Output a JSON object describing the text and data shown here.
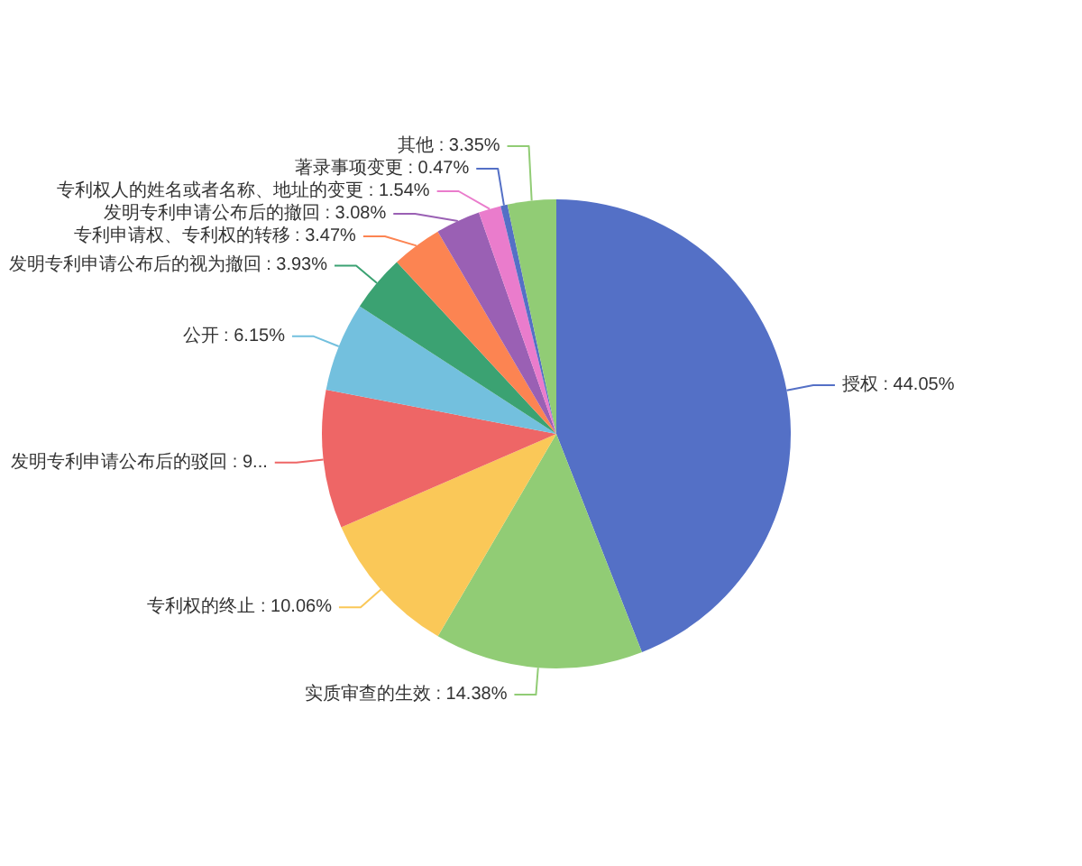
{
  "chart_data": {
    "type": "pie",
    "categories": [
      "授权",
      "实质审查的生效",
      "专利权的终止",
      "发明专利申请公布后的驳回",
      "公开",
      "发明专利申请公布后的视为撤回",
      "专利申请权、专利权的转移",
      "发明专利申请公布后的撤回",
      "专利权人的姓名或者名称、地址的变更",
      "著录事项变更",
      "其他"
    ],
    "values": [
      44.05,
      14.38,
      10.06,
      9.52,
      6.15,
      3.93,
      3.47,
      3.08,
      1.54,
      0.47,
      3.35
    ],
    "colors": [
      "#5470c6",
      "#91cc75",
      "#fac858",
      "#ee6666",
      "#73c0de",
      "#3ba272",
      "#fc8452",
      "#9a60b4",
      "#ea7ccc",
      "#5470c6",
      "#91cc75"
    ],
    "value_labels": [
      "44.05%",
      "14.38%",
      "10.06%",
      "9...",
      "6.15%",
      "3.93%",
      "3.47%",
      "3.08%",
      "1.54%",
      "0.47%",
      "3.35%"
    ]
  }
}
